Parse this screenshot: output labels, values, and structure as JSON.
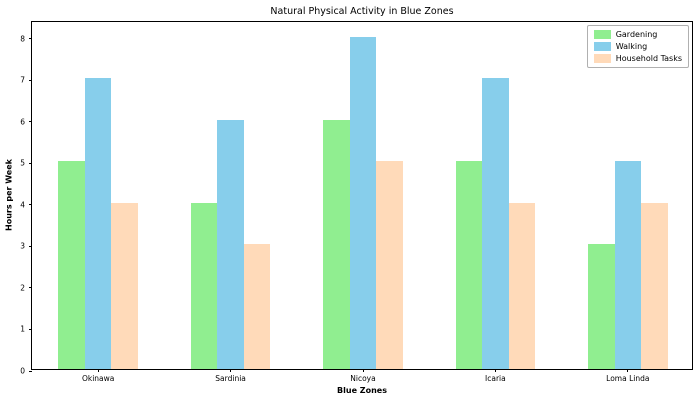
{
  "chart_data": {
    "type": "bar",
    "title": "Natural Physical Activity in Blue Zones",
    "xlabel": "Blue Zones",
    "ylabel": "Hours per Week",
    "categories": [
      "Okinawa",
      "Sardinia",
      "Nicoya",
      "Icaria",
      "Loma Linda"
    ],
    "series": [
      {
        "name": "Gardening",
        "color": "#90EE90",
        "values": [
          5,
          4,
          6,
          5,
          3
        ]
      },
      {
        "name": "Walking",
        "color": "#87CEEB",
        "values": [
          7,
          6,
          8,
          7,
          5
        ]
      },
      {
        "name": "Household Tasks",
        "color": "#FFDAB9",
        "values": [
          4,
          3,
          5,
          4,
          4
        ]
      }
    ],
    "ylim": [
      0,
      8.4
    ],
    "yticks": [
      0,
      1,
      2,
      3,
      4,
      5,
      6,
      7,
      8
    ],
    "legend_position": "top-right",
    "grid": false,
    "background": "#FFFFFF",
    "spine_color": "#000000"
  }
}
